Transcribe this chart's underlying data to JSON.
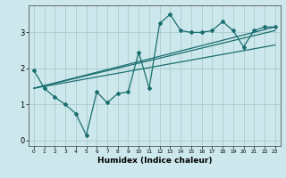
{
  "title": "",
  "xlabel": "Humidex (Indice chaleur)",
  "ylabel": "",
  "background_color": "#cce8ec",
  "grid_color": "#aacccc",
  "line_color": "#1a6e6e",
  "xlim": [
    -0.5,
    23.5
  ],
  "ylim": [
    -0.15,
    3.75
  ],
  "yticks": [
    0,
    1,
    2,
    3
  ],
  "xticks": [
    0,
    1,
    2,
    3,
    4,
    5,
    6,
    7,
    8,
    9,
    10,
    11,
    12,
    13,
    14,
    15,
    16,
    17,
    18,
    19,
    20,
    21,
    22,
    23
  ],
  "series": {
    "zigzag": {
      "x": [
        0,
        1,
        2,
        3,
        4,
        5,
        6,
        7,
        8,
        9,
        10,
        11,
        12,
        13,
        14,
        15,
        16,
        17,
        18,
        19,
        20,
        21,
        22,
        23
      ],
      "y": [
        1.95,
        1.45,
        1.2,
        1.0,
        0.75,
        0.15,
        1.35,
        1.05,
        1.3,
        1.35,
        2.45,
        1.45,
        3.25,
        3.5,
        3.05,
        3.0,
        3.0,
        3.05,
        3.3,
        3.05,
        2.6,
        3.05,
        3.15,
        3.15
      ]
    },
    "line1": {
      "x": [
        0,
        23
      ],
      "y": [
        1.45,
        3.15
      ]
    },
    "line2": {
      "x": [
        0,
        23
      ],
      "y": [
        1.45,
        2.65
      ]
    },
    "line3": {
      "x": [
        0,
        23
      ],
      "y": [
        1.45,
        3.05
      ]
    }
  }
}
